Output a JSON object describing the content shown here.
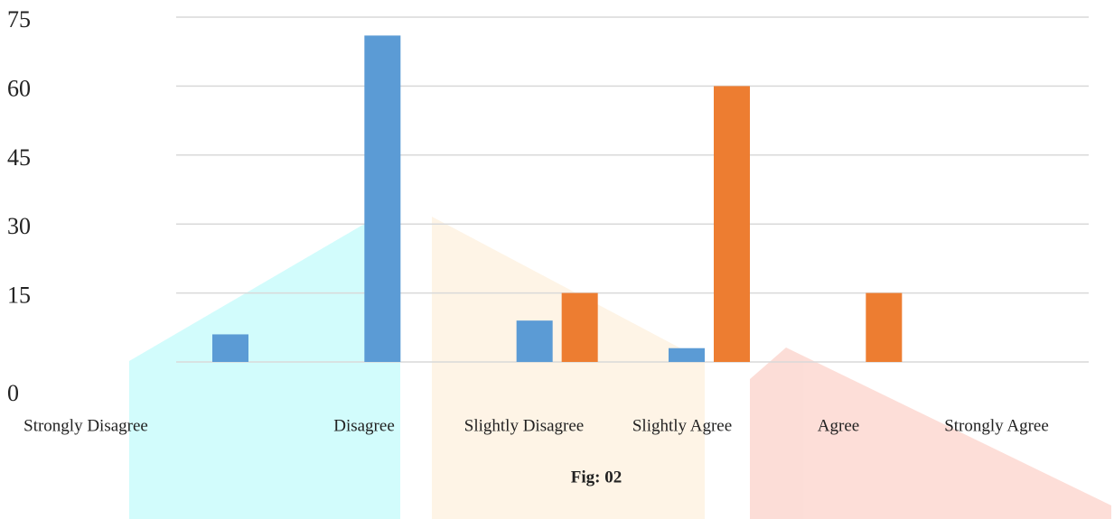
{
  "chart_data": {
    "type": "bar",
    "categories": [
      "Strongly Disagree",
      "Disagree",
      "Slightly Disagree",
      "Slightly Agree",
      "Agree",
      "Strongly Agree"
    ],
    "series": [
      {
        "color": "#5b9bd5",
        "values": [
          6,
          71,
          9,
          3,
          0,
          0
        ]
      },
      {
        "color": "#ed7d31",
        "values": [
          0,
          0,
          15,
          60,
          15,
          0
        ]
      }
    ],
    "ylim": [
      0,
      75
    ],
    "yticks": [
      0,
      15,
      30,
      45,
      60,
      75
    ],
    "grid": true,
    "caption": "Fig: 02"
  }
}
